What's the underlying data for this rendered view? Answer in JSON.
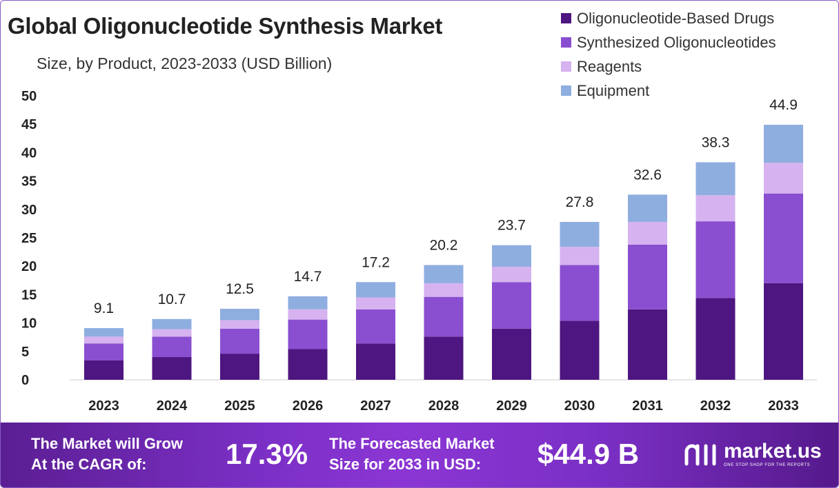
{
  "title": "Global Oligonucleotide Synthesis Market",
  "subtitle": "Size, by Product, 2023-2033 (USD Billion)",
  "legend": [
    {
      "label": "Oligonucleotide-Based Drugs",
      "color": "#4e1680"
    },
    {
      "label": "Synthesized Oligonucleotides",
      "color": "#8a4fd0"
    },
    {
      "label": "Reagents",
      "color": "#d6b2f0"
    },
    {
      "label": "Equipment",
      "color": "#8faee0"
    }
  ],
  "chart_data": {
    "type": "bar",
    "stacked": true,
    "categories": [
      "2023",
      "2024",
      "2025",
      "2026",
      "2027",
      "2028",
      "2029",
      "2030",
      "2031",
      "2032",
      "2033"
    ],
    "ylim": [
      0,
      50
    ],
    "yticks": [
      0,
      5,
      10,
      15,
      20,
      25,
      30,
      35,
      40,
      45,
      50
    ],
    "grid": false,
    "legend_position": "top-right",
    "series": [
      {
        "name": "Oligonucleotide-Based Drugs",
        "color": "#4e1680",
        "values": [
          3.4,
          4.0,
          4.6,
          5.4,
          6.4,
          7.6,
          9.0,
          10.4,
          12.4,
          14.4,
          17.0
        ]
      },
      {
        "name": "Synthesized Oligonucleotides",
        "color": "#8a4fd0",
        "values": [
          3.0,
          3.6,
          4.4,
          5.2,
          6.0,
          7.0,
          8.2,
          9.8,
          11.4,
          13.5,
          15.8
        ]
      },
      {
        "name": "Reagents",
        "color": "#d6b2f0",
        "values": [
          1.2,
          1.3,
          1.5,
          1.8,
          2.1,
          2.4,
          2.7,
          3.2,
          4.0,
          4.6,
          5.4
        ]
      },
      {
        "name": "Equipment",
        "color": "#8faee0",
        "values": [
          1.5,
          1.8,
          2.0,
          2.3,
          2.7,
          3.2,
          3.8,
          4.4,
          4.8,
          5.8,
          6.7
        ]
      }
    ],
    "totals": [
      9.1,
      10.7,
      12.5,
      14.7,
      17.2,
      20.2,
      23.7,
      27.8,
      32.6,
      38.3,
      44.9
    ],
    "total_labels": [
      "9.1",
      "10.7",
      "12.5",
      "14.7",
      "17.2",
      "20.2",
      "23.7",
      "27.8",
      "32.6",
      "38.3",
      "44.9"
    ]
  },
  "footer": {
    "cagr_text_line1": "The Market will Grow",
    "cagr_text_line2": "At the CAGR of:",
    "cagr_value": "17.3%",
    "forecast_text_line1": "The Forecasted Market",
    "forecast_text_line2": "Size for 2033 in USD:",
    "forecast_value": "$44.9 B",
    "brand_name": "market.us",
    "brand_tagline": "ONE STOP SHOP FOR THE REPORTS"
  }
}
